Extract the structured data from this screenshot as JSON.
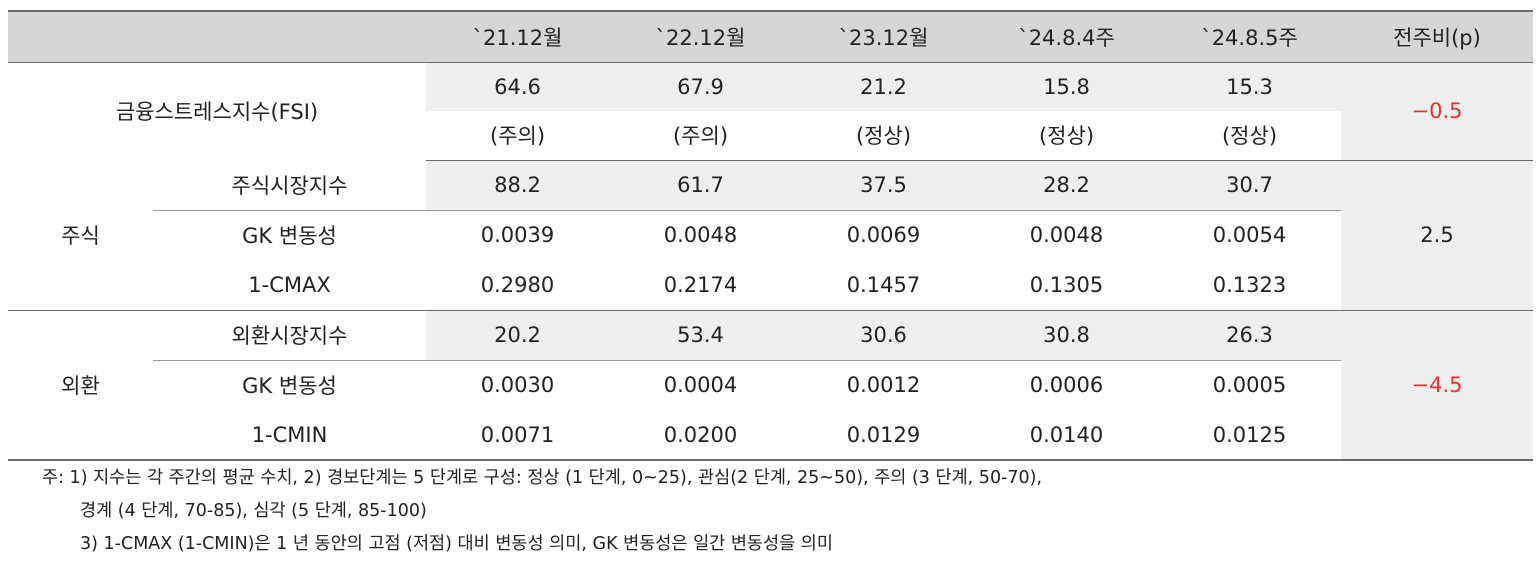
{
  "table": {
    "headers": [
      "`21.12월",
      "`22.12월",
      "`23.12월",
      "`24.8.4주",
      "`24.8.5주",
      "전주비(p)"
    ],
    "fsi": {
      "label": "금융스트레스지수(FSI)",
      "values": [
        "64.6",
        "67.9",
        "21.2",
        "15.8",
        "15.3"
      ],
      "states": [
        "(주의)",
        "(주의)",
        "(정상)",
        "(정상)",
        "(정상)"
      ],
      "delta": "−0.5"
    },
    "stock": {
      "group": "주식",
      "delta": "2.5",
      "rows": [
        {
          "label": "주식시장지수",
          "values": [
            "88.2",
            "61.7",
            "37.5",
            "28.2",
            "30.7"
          ]
        },
        {
          "label": "GK 변동성",
          "values": [
            "0.0039",
            "0.0048",
            "0.0069",
            "0.0048",
            "0.0054"
          ]
        },
        {
          "label": "1-CMAX",
          "values": [
            "0.2980",
            "0.2174",
            "0.1457",
            "0.1305",
            "0.1323"
          ]
        }
      ]
    },
    "fx": {
      "group": "외환",
      "delta": "−4.5",
      "rows": [
        {
          "label": "외환시장지수",
          "values": [
            "20.2",
            "53.4",
            "30.6",
            "30.8",
            "26.3"
          ]
        },
        {
          "label": "GK 변동성",
          "values": [
            "0.0030",
            "0.0004",
            "0.0012",
            "0.0006",
            "0.0005"
          ]
        },
        {
          "label": "1-CMIN",
          "values": [
            "0.0071",
            "0.0200",
            "0.0129",
            "0.0140",
            "0.0125"
          ]
        }
      ]
    }
  },
  "notes": {
    "line1": "주: 1) 지수는 각 주간의 평균 수치, 2) 경보단계는 5 단계로 구성: 정상 (1 단계, 0~25), 관심(2 단계, 25~50), 주의 (3 단계, 50-70),",
    "line2": "경계 (4 단계, 70-85), 심각 (5 단계, 85-100)",
    "line3": "3) 1-CMAX (1-CMIN)은 1 년 동안의 고점 (저점) 대비 변동성 의미, GK 변동성은 일간 변동성을 의미"
  },
  "colors": {
    "header_bg": "#d6d6d6",
    "cell_bg": "#efefef",
    "negative": "#e8332b"
  }
}
